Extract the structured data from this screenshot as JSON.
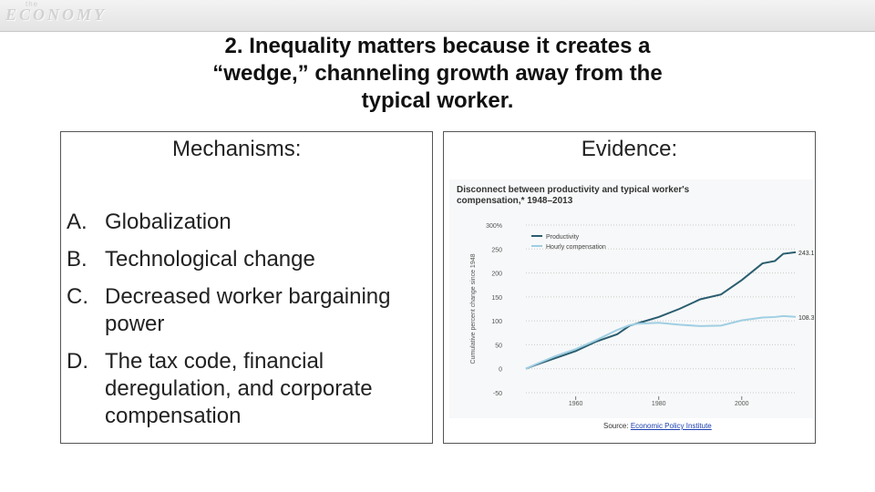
{
  "header": {
    "logo_top": "the",
    "logo": "ECONOMY"
  },
  "slide": {
    "title_lines": [
      "2. Inequality matters because it creates a",
      "“wedge,” channeling growth away from the",
      "typical worker."
    ]
  },
  "left_panel": {
    "heading": "Mechanisms:",
    "items": [
      {
        "letter": "A.",
        "text": "Globalization"
      },
      {
        "letter": "B.",
        "text": "Technological change"
      },
      {
        "letter": "C.",
        "text": "Decreased worker bargaining power"
      },
      {
        "letter": "D.",
        "text": "The tax code, financial deregulation, and corporate compensation"
      }
    ]
  },
  "right_panel": {
    "heading": "Evidence:",
    "source_label": "Source:",
    "source_link": "Economic Policy Institute"
  },
  "colors": {
    "productivity": "#2a5d6f",
    "compensation": "#9fcfe3"
  },
  "chart_data": {
    "type": "line",
    "title_lines": [
      "Disconnect between productivity and typical worker's",
      "compensation,* 1948–2013"
    ],
    "ylabel": "Cumulative percent change since 1948",
    "yticks": [
      "300%",
      "250",
      "200",
      "150",
      "100",
      "50",
      "0",
      "-50"
    ],
    "ylim": [
      -50,
      300
    ],
    "xticks": [
      "1960",
      "1980",
      "2000"
    ],
    "xlim": [
      1948,
      2013
    ],
    "legend_placement": "top-left",
    "series": [
      {
        "name": "Productivity",
        "end_label": "243.1%",
        "x": [
          1948,
          1950,
          1955,
          1960,
          1965,
          1970,
          1973,
          1975,
          1980,
          1985,
          1990,
          1995,
          2000,
          2005,
          2008,
          2010,
          2013
        ],
        "values": [
          0,
          7,
          22,
          37,
          57,
          72,
          90,
          95,
          108,
          125,
          145,
          155,
          185,
          220,
          225,
          240,
          243.1
        ]
      },
      {
        "name": "Hourly compensation",
        "end_label": "108.3%",
        "x": [
          1948,
          1950,
          1955,
          1960,
          1965,
          1970,
          1973,
          1975,
          1980,
          1985,
          1990,
          1995,
          2000,
          2005,
          2008,
          2010,
          2013
        ],
        "values": [
          0,
          8,
          26,
          41,
          60,
          81,
          91,
          94,
          96,
          92,
          89,
          90,
          101,
          107,
          108,
          110,
          108.3
        ]
      }
    ]
  }
}
